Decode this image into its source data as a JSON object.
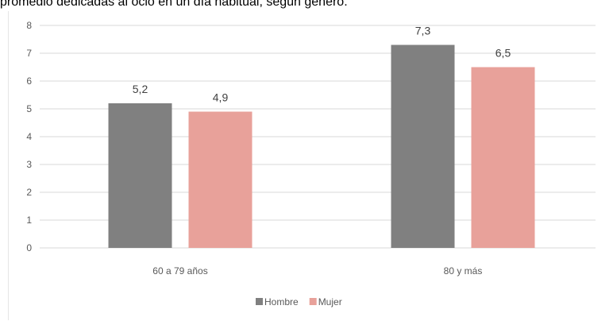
{
  "caption": "promedio dedicadas al ocio en un día habitual, según género.",
  "chart_data": {
    "type": "bar",
    "categories": [
      "60 a 79 años",
      "80 y más"
    ],
    "series": [
      {
        "name": "Hombre",
        "values": [
          5.2,
          7.3
        ],
        "labels": [
          "5,2",
          "7,3"
        ],
        "color": "#808080"
      },
      {
        "name": "Mujer",
        "values": [
          4.9,
          6.5
        ],
        "labels": [
          "4,9",
          "6,5"
        ],
        "color": "#e8a19a"
      }
    ],
    "ylim": [
      0,
      8
    ],
    "yticks": [
      "0",
      "1",
      "2",
      "3",
      "4",
      "5",
      "6",
      "7",
      "8"
    ],
    "grid": true,
    "legend": "bottom-center",
    "gridColor": "#d9d9d9"
  }
}
